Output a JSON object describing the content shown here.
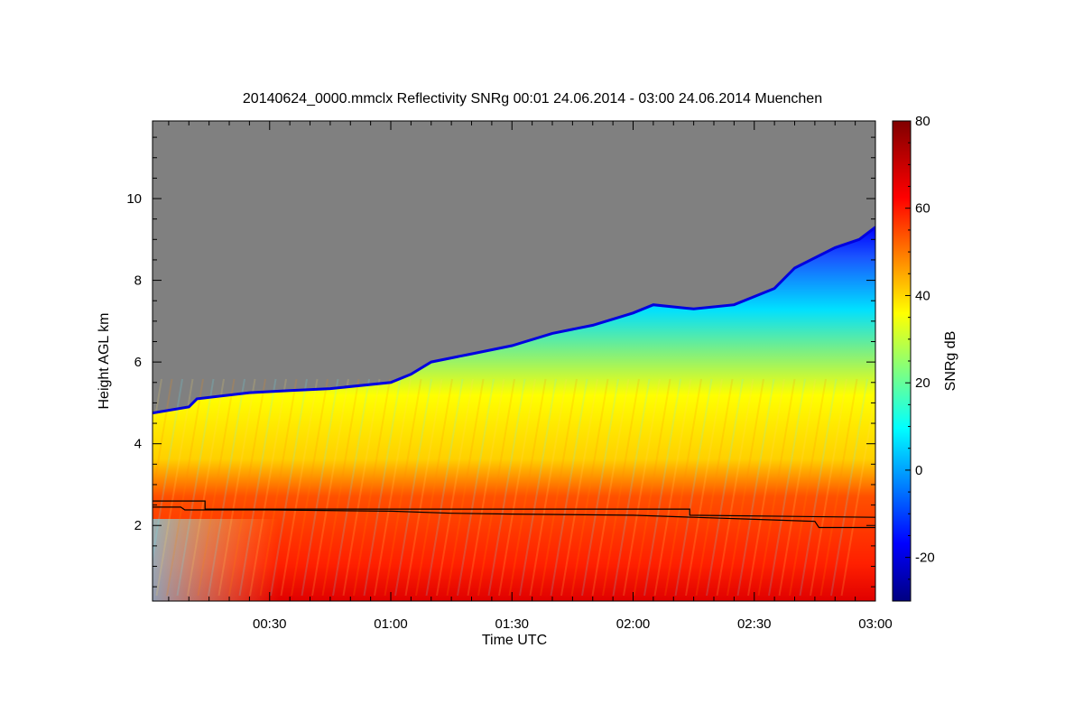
{
  "chart_data": {
    "type": "heatmap",
    "title": "20140624_0000.mmclx Reflectivity SNRg   00:01 24.06.2014 - 03:00 24.06.2014 Muenchen",
    "xlabel": "Time UTC",
    "ylabel": "Height AGL km",
    "colorbar_label": "SNRg dB",
    "xlim_minutes": [
      1,
      180
    ],
    "ylim_km": [
      0.15,
      11.9
    ],
    "x_ticks": [
      {
        "minutes": 30,
        "label": "00:30"
      },
      {
        "minutes": 60,
        "label": "01:00"
      },
      {
        "minutes": 90,
        "label": "01:30"
      },
      {
        "minutes": 120,
        "label": "02:00"
      },
      {
        "minutes": 150,
        "label": "02:30"
      },
      {
        "minutes": 180,
        "label": "03:00"
      }
    ],
    "y_ticks": [
      {
        "km": 2,
        "label": "2"
      },
      {
        "km": 4,
        "label": "4"
      },
      {
        "km": 6,
        "label": "6"
      },
      {
        "km": 8,
        "label": "8"
      },
      {
        "km": 10,
        "label": "10"
      }
    ],
    "colorbar_range_db": [
      -30,
      80
    ],
    "colorbar_ticks": [
      {
        "db": -20,
        "label": "-20"
      },
      {
        "db": 0,
        "label": "0"
      },
      {
        "db": 20,
        "label": "20"
      },
      {
        "db": 40,
        "label": "40"
      },
      {
        "db": 60,
        "label": "60"
      },
      {
        "db": 80,
        "label": "80"
      }
    ],
    "colormap": [
      "#000080",
      "#0000ff",
      "#00ffff",
      "#ffff00",
      "#ff0000",
      "#800000"
    ],
    "no_data_color": "#808080",
    "cloud_top_km": [
      {
        "minutes": 1,
        "km": 4.75
      },
      {
        "minutes": 10,
        "km": 4.9
      },
      {
        "minutes": 12,
        "km": 5.1
      },
      {
        "minutes": 25,
        "km": 5.25
      },
      {
        "minutes": 35,
        "km": 5.3
      },
      {
        "minutes": 45,
        "km": 5.35
      },
      {
        "minutes": 60,
        "km": 5.5
      },
      {
        "minutes": 65,
        "km": 5.7
      },
      {
        "minutes": 70,
        "km": 6.0
      },
      {
        "minutes": 80,
        "km": 6.2
      },
      {
        "minutes": 90,
        "km": 6.4
      },
      {
        "minutes": 100,
        "km": 6.7
      },
      {
        "minutes": 110,
        "km": 6.9
      },
      {
        "minutes": 120,
        "km": 7.2
      },
      {
        "minutes": 125,
        "km": 7.4
      },
      {
        "minutes": 135,
        "km": 7.3
      },
      {
        "minutes": 145,
        "km": 7.4
      },
      {
        "minutes": 155,
        "km": 7.8
      },
      {
        "minutes": 160,
        "km": 8.3
      },
      {
        "minutes": 170,
        "km": 8.8
      },
      {
        "minutes": 176,
        "km": 9.0
      },
      {
        "minutes": 180,
        "km": 9.3
      }
    ],
    "series": [
      {
        "name": "upper boundary line",
        "points": [
          {
            "minutes": 1,
            "km": 2.6
          },
          {
            "minutes": 14,
            "km": 2.6
          },
          {
            "minutes": 14,
            "km": 2.4
          },
          {
            "minutes": 60,
            "km": 2.4
          },
          {
            "minutes": 100,
            "km": 2.4
          },
          {
            "minutes": 134,
            "km": 2.4
          },
          {
            "minutes": 134,
            "km": 2.25
          },
          {
            "minutes": 180,
            "km": 2.2
          }
        ]
      },
      {
        "name": "lower boundary line",
        "points": [
          {
            "minutes": 1,
            "km": 2.45
          },
          {
            "minutes": 8,
            "km": 2.45
          },
          {
            "minutes": 9,
            "km": 2.38
          },
          {
            "minutes": 30,
            "km": 2.38
          },
          {
            "minutes": 60,
            "km": 2.35
          },
          {
            "minutes": 75,
            "km": 2.3
          },
          {
            "minutes": 90,
            "km": 2.28
          },
          {
            "minutes": 120,
            "km": 2.25
          },
          {
            "minutes": 135,
            "km": 2.2
          },
          {
            "minutes": 150,
            "km": 2.15
          },
          {
            "minutes": 165,
            "km": 2.1
          },
          {
            "minutes": 166,
            "km": 1.95
          },
          {
            "minutes": 180,
            "km": 1.95
          }
        ]
      }
    ]
  }
}
